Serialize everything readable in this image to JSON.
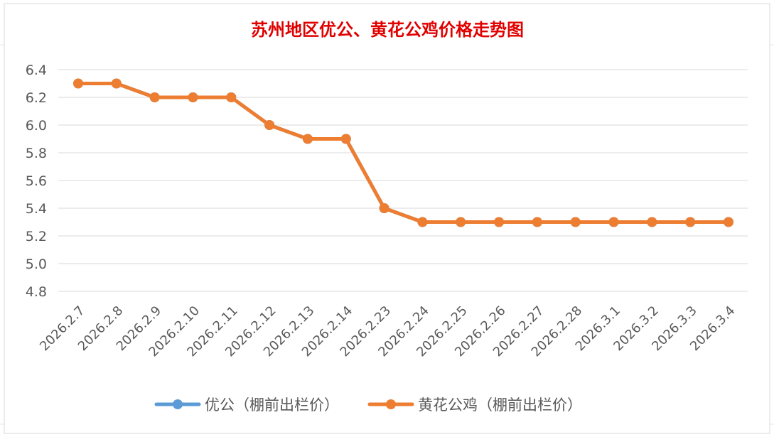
{
  "chart_data": {
    "type": "line",
    "title": "苏州地区优公、黄花公鸡价格走势图",
    "xlabel": "",
    "ylabel": "",
    "categories": [
      "2026.2.7",
      "2026.2.8",
      "2026.2.9",
      "2026.2.10",
      "2026.2.11",
      "2026.2.12",
      "2026.2.13",
      "2026.2.14",
      "2026.2.23",
      "2026.2.24",
      "2026.2.25",
      "2026.2.26",
      "2026.2.27",
      "2026.2.28",
      "2026.3.1",
      "2026.3.2",
      "2026.3.3",
      "2026.3.4"
    ],
    "ylim": [
      4.8,
      6.4
    ],
    "yticks": [
      "6.4",
      "6.2",
      "6.0",
      "5.8",
      "5.6",
      "5.4",
      "5.2",
      "5.0",
      "4.8"
    ],
    "grid": true,
    "legend_position": "bottom",
    "series": [
      {
        "name": "优公（棚前出栏价）",
        "color": "#5b9bd5",
        "values": [
          6.3,
          6.3,
          6.2,
          6.2,
          6.2,
          6.0,
          5.9,
          5.9,
          5.4,
          5.3,
          5.3,
          5.3,
          5.3,
          5.3,
          5.3,
          5.3,
          5.3,
          5.3
        ]
      },
      {
        "name": "黄花公鸡（棚前出栏价）",
        "color": "#ed7d31",
        "values": [
          6.3,
          6.3,
          6.2,
          6.2,
          6.2,
          6.0,
          5.9,
          5.9,
          5.4,
          5.3,
          5.3,
          5.3,
          5.3,
          5.3,
          5.3,
          5.3,
          5.3,
          5.3
        ]
      }
    ]
  }
}
